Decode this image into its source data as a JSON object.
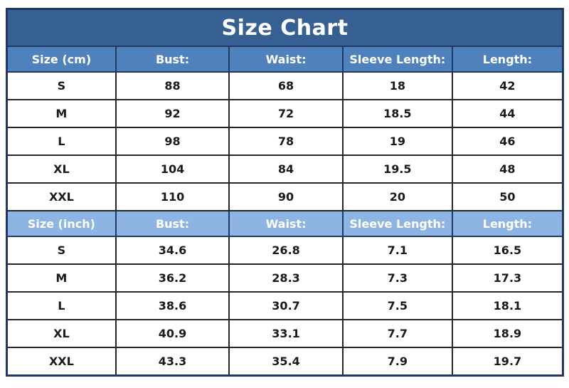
{
  "title": "Size Chart",
  "colors": {
    "title_bar_bg": "#376092",
    "header_cm_bg": "#4f81bd",
    "header_inch_bg": "#8db4e2",
    "header_text": "#ffffff",
    "data_text": "#1a1a1a",
    "outer_border": "#1f3864",
    "inner_border": "#262626",
    "page_bg": "#ffffff"
  },
  "sections": [
    {
      "unit": "cm",
      "headers": [
        "Size (cm)",
        "Bust:",
        "Waist:",
        "Sleeve Length:",
        "Length:"
      ],
      "rows": [
        [
          "S",
          "88",
          "68",
          "18",
          "42"
        ],
        [
          "M",
          "92",
          "72",
          "18.5",
          "44"
        ],
        [
          "L",
          "98",
          "78",
          "19",
          "46"
        ],
        [
          "XL",
          "104",
          "84",
          "19.5",
          "48"
        ],
        [
          "XXL",
          "110",
          "90",
          "20",
          "50"
        ]
      ]
    },
    {
      "unit": "inch",
      "headers": [
        "Size (inch)",
        "Bust:",
        "Waist:",
        "Sleeve Length:",
        "Length:"
      ],
      "rows": [
        [
          "S",
          "34.6",
          "26.8",
          "7.1",
          "16.5"
        ],
        [
          "M",
          "36.2",
          "28.3",
          "7.3",
          "17.3"
        ],
        [
          "L",
          "38.6",
          "30.7",
          "7.5",
          "18.1"
        ],
        [
          "XL",
          "40.9",
          "33.1",
          "7.7",
          "18.9"
        ],
        [
          "XXL",
          "43.3",
          "35.4",
          "7.9",
          "19.7"
        ]
      ]
    }
  ]
}
